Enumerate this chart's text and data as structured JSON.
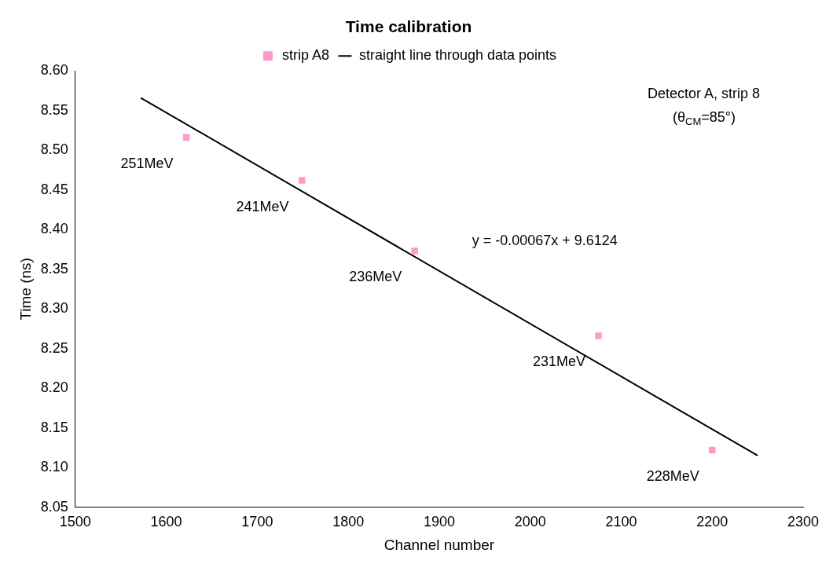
{
  "chart_data": {
    "type": "scatter",
    "title": "Time calibration",
    "xlabel": "Channel number",
    "ylabel": "Time (ns)",
    "xlim": [
      1500,
      2300
    ],
    "xticks": [
      1500,
      1600,
      1700,
      1800,
      1900,
      2000,
      2100,
      2200,
      2300
    ],
    "ylim": [
      8.05,
      8.6
    ],
    "yticks": [
      8.05,
      {
        "value": 8.1,
        "label": "8.10"
      },
      8.15,
      {
        "value": 8.2,
        "label": "8.20"
      },
      8.25,
      {
        "value": 8.3,
        "label": "8.30"
      },
      8.35,
      {
        "value": 8.4,
        "label": "8.40"
      },
      8.45,
      {
        "value": 8.5,
        "label": "8.50"
      },
      8.55,
      {
        "value": 8.6,
        "label": "8.60"
      }
    ],
    "legend": "top",
    "grid": false,
    "series": [
      {
        "name": "strip A8",
        "marker": "square",
        "color": "#ff99cc",
        "x": [
          1622,
          1749,
          1873,
          2075,
          2200
        ],
        "values": [
          8.516,
          8.462,
          8.373,
          8.266,
          8.122
        ]
      },
      {
        "name": "straight line through data points",
        "type": "line",
        "marker": "none",
        "line_style": "solid",
        "color": "#000000",
        "x": [
          1572,
          2250
        ],
        "values": [
          8.566,
          8.115
        ]
      }
    ],
    "annotations": [
      "Detector A, strip 8",
      "(θ$_{CM}$=85°)",
      "y = -0.00067x + 9.6124",
      {
        "text": "251MeV",
        "x": 1622,
        "y": 8.516
      },
      {
        "text": "241MeV",
        "x": 1749,
        "y": 8.462
      },
      {
        "text": "236MeV",
        "x": 1873,
        "y": 8.373
      },
      {
        "text": "231MeV",
        "x": 2075,
        "y": 8.266
      },
      {
        "text": "228MeV",
        "x": 2200,
        "y": 8.122
      }
    ]
  }
}
